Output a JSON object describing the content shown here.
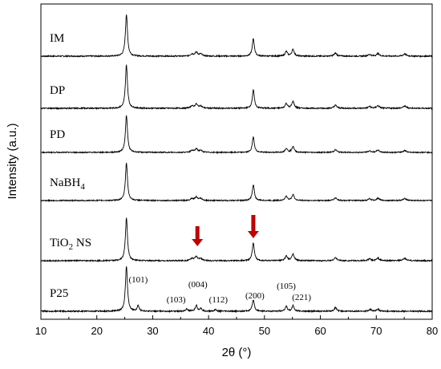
{
  "chart_data": {
    "type": "line",
    "title": "",
    "xlabel": "2θ (°)",
    "ylabel": "Intensity (a.u.)",
    "xlim": [
      10,
      80
    ],
    "xticks": [
      "10",
      "20",
      "30",
      "40",
      "50",
      "60",
      "70",
      "80"
    ],
    "grid": false,
    "series": [
      {
        "name": "IM",
        "label_main": "IM",
        "label_sub": ""
      },
      {
        "name": "DP",
        "label_main": "DP",
        "label_sub": ""
      },
      {
        "name": "PD",
        "label_main": "PD",
        "label_sub": ""
      },
      {
        "name": "NaBH4",
        "label_main": "NaBH",
        "label_sub": "4"
      },
      {
        "name": "TiO2 NS",
        "label_main": "TiO",
        "label_sub": "2",
        "label_tail": " NS"
      },
      {
        "name": "P25",
        "label_main": "P25",
        "label_sub": ""
      }
    ],
    "peaks_anatase": [
      {
        "x": 25.3,
        "h": 1.0,
        "w": 0.22
      },
      {
        "x": 37.0,
        "h": 0.05,
        "w": 0.3
      },
      {
        "x": 37.8,
        "h": 0.09,
        "w": 0.3
      },
      {
        "x": 38.6,
        "h": 0.05,
        "w": 0.3
      },
      {
        "x": 48.0,
        "h": 0.42,
        "w": 0.22
      },
      {
        "x": 53.9,
        "h": 0.11,
        "w": 0.25
      },
      {
        "x": 55.1,
        "h": 0.16,
        "w": 0.25
      },
      {
        "x": 62.7,
        "h": 0.07,
        "w": 0.3
      },
      {
        "x": 68.8,
        "h": 0.04,
        "w": 0.3
      },
      {
        "x": 70.3,
        "h": 0.06,
        "w": 0.3
      },
      {
        "x": 75.1,
        "h": 0.05,
        "w": 0.35
      }
    ],
    "peaks_p25": [
      {
        "x": 25.3,
        "h": 1.0,
        "w": 0.22
      },
      {
        "x": 27.4,
        "h": 0.13,
        "w": 0.2
      },
      {
        "x": 36.1,
        "h": 0.05,
        "w": 0.2
      },
      {
        "x": 37.8,
        "h": 0.13,
        "w": 0.22
      },
      {
        "x": 38.6,
        "h": 0.06,
        "w": 0.22
      },
      {
        "x": 41.2,
        "h": 0.04,
        "w": 0.2
      },
      {
        "x": 48.0,
        "h": 0.25,
        "w": 0.22
      },
      {
        "x": 53.9,
        "h": 0.11,
        "w": 0.22
      },
      {
        "x": 55.1,
        "h": 0.13,
        "w": 0.22
      },
      {
        "x": 62.7,
        "h": 0.08,
        "w": 0.25
      },
      {
        "x": 68.9,
        "h": 0.04,
        "w": 0.25
      },
      {
        "x": 70.3,
        "h": 0.05,
        "w": 0.25
      }
    ],
    "annotations": [
      {
        "text": "(101)",
        "x": 25.4
      },
      {
        "text": "(103)",
        "x": 36.2
      },
      {
        "text": "(004)",
        "x": 37.8
      },
      {
        "text": "(112)",
        "x": 38.6
      },
      {
        "text": "(200)",
        "x": 48.0
      },
      {
        "text": "(105)",
        "x": 53.9
      },
      {
        "text": "(221)",
        "x": 55.2
      }
    ],
    "arrows": [
      {
        "x": 38.0,
        "series": "TiO2 NS",
        "color": "#c00000"
      },
      {
        "x": 48.0,
        "series": "TiO2 NS",
        "color": "#c00000"
      }
    ]
  }
}
